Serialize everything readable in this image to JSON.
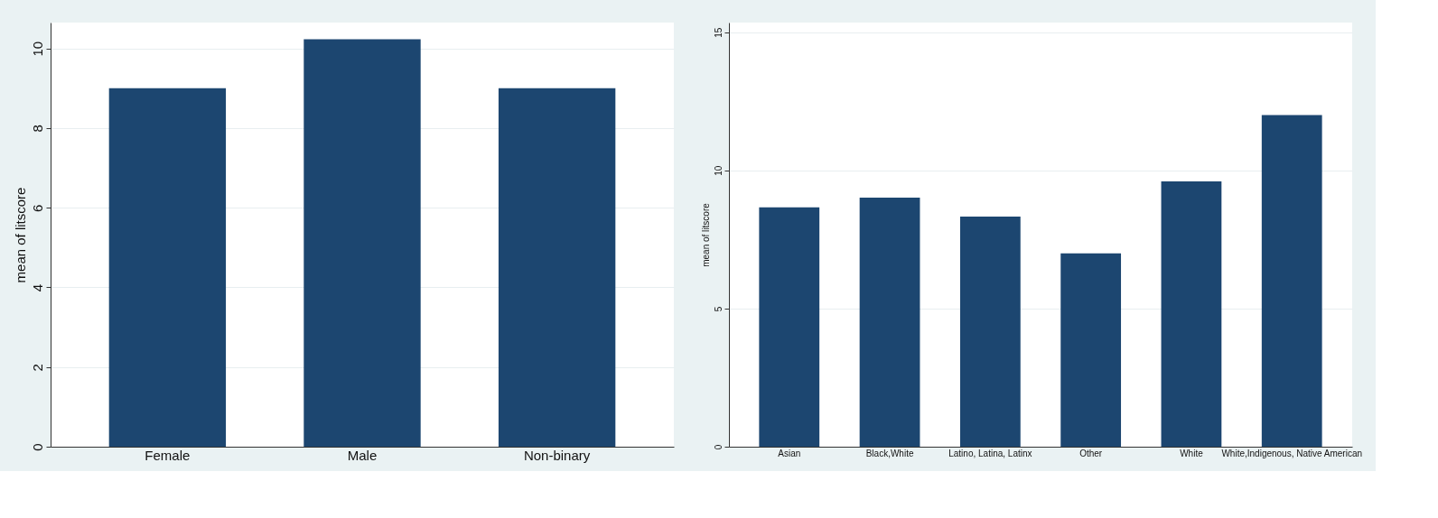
{
  "chart_data": [
    {
      "type": "bar",
      "ylabel": "mean of litscore",
      "categories": [
        "Female",
        "Male",
        "Non-binary"
      ],
      "series": [
        {
          "color": "#1c4670",
          "values": [
            9.0,
            10.23,
            9.0
          ]
        }
      ],
      "ylim": [
        0,
        10.65
      ],
      "yticks": [
        0,
        2,
        4,
        6,
        8,
        10
      ],
      "grid": "y"
    },
    {
      "type": "bar",
      "ylabel": "mean of litscore",
      "categories": [
        "Asian",
        "Black,White",
        "Latino, Latina, Latinx",
        "Other",
        "White",
        "White,Indigenous, Native American"
      ],
      "series": [
        {
          "color": "#1c4670",
          "values": [
            8.66,
            9.01,
            8.33,
            7.0,
            9.6,
            12.0
          ]
        }
      ],
      "ylim": [
        0,
        15.35
      ],
      "yticks": [
        0,
        5,
        10,
        15
      ],
      "grid": "y"
    }
  ]
}
